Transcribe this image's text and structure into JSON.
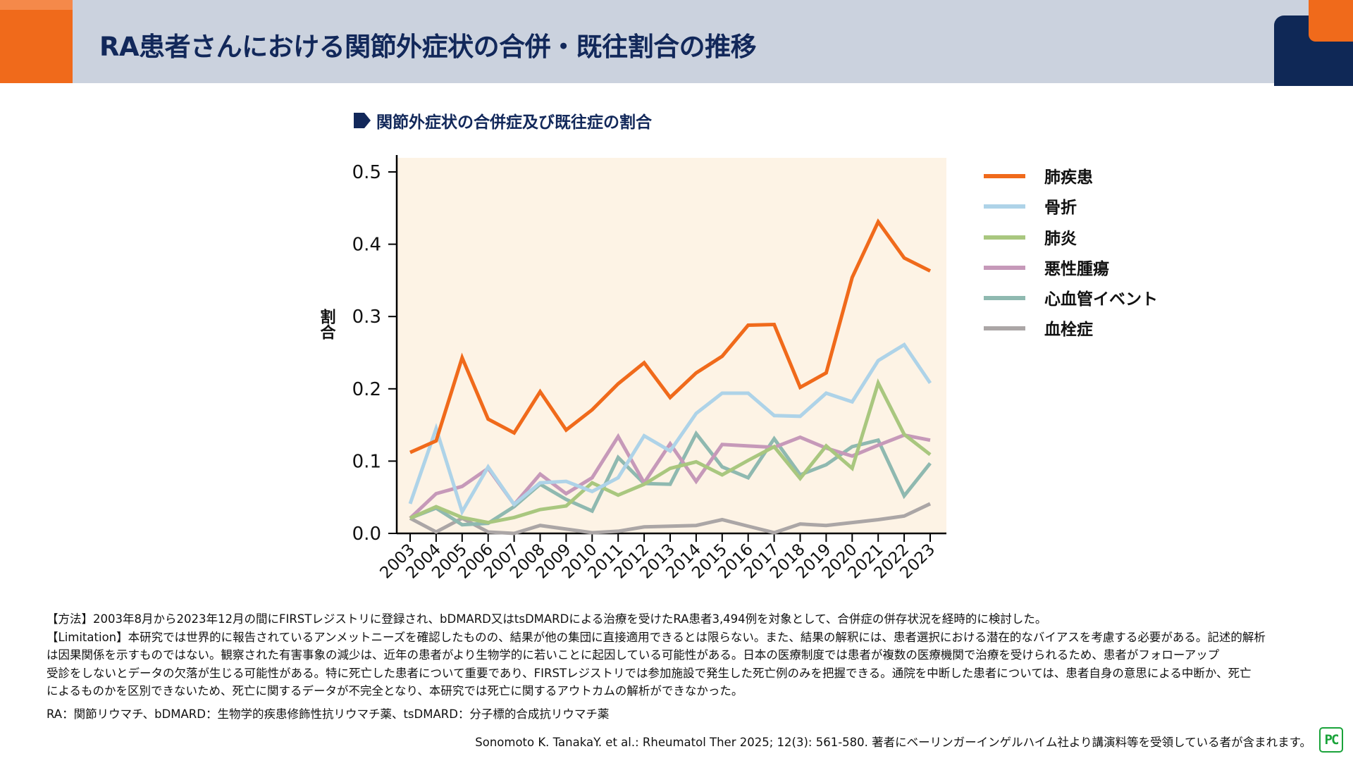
{
  "header": {
    "title": "RA患者さんにおける関節外症状の合併・既往割合の推移"
  },
  "colors": {
    "header_bg": "#cbd2de",
    "accent_orange": "#f06a1b",
    "navy": "#12285a",
    "plot_bg": "#fdf3e5"
  },
  "chart_data": {
    "type": "line",
    "title": "関節外症状の合併症及び既往症の割合",
    "xlabel": "",
    "ylabel": "割合",
    "x": [
      "2003",
      "2004",
      "2005",
      "2006",
      "2007",
      "2008",
      "2009",
      "2010",
      "2011",
      "2012",
      "2013",
      "2014",
      "2015",
      "2016",
      "2017",
      "2018",
      "2019",
      "2020",
      "2021",
      "2022",
      "2023"
    ],
    "ylim": [
      0,
      0.52
    ],
    "yticks": [
      "0.0",
      "0.1",
      "0.2",
      "0.3",
      "0.4",
      "0.5"
    ],
    "grid": false,
    "legend_position": "right",
    "series": [
      {
        "name": "肺疾患",
        "color": "#f06a1b",
        "values": [
          0.112,
          0.128,
          0.243,
          0.158,
          0.139,
          0.196,
          0.143,
          0.171,
          0.207,
          0.236,
          0.188,
          0.222,
          0.245,
          0.288,
          0.289,
          0.202,
          0.222,
          0.354,
          0.431,
          0.381,
          0.363
        ]
      },
      {
        "name": "骨折",
        "color": "#aed3e8",
        "values": [
          0.041,
          0.145,
          0.03,
          0.092,
          0.04,
          0.07,
          0.072,
          0.058,
          0.077,
          0.135,
          0.114,
          0.166,
          0.194,
          0.194,
          0.163,
          0.162,
          0.194,
          0.182,
          0.239,
          0.261,
          0.208
        ]
      },
      {
        "name": "肺炎",
        "color": "#a9c77f",
        "values": [
          0.021,
          0.037,
          0.022,
          0.015,
          0.022,
          0.033,
          0.038,
          0.07,
          0.053,
          0.068,
          0.09,
          0.099,
          0.081,
          0.101,
          0.12,
          0.076,
          0.121,
          0.09,
          0.208,
          0.137,
          0.109
        ]
      },
      {
        "name": "悪性腫瘍",
        "color": "#c699b9",
        "values": [
          0.021,
          0.055,
          0.065,
          0.09,
          0.04,
          0.082,
          0.055,
          0.077,
          0.134,
          0.07,
          0.124,
          0.072,
          0.123,
          0.121,
          0.119,
          0.133,
          0.118,
          0.107,
          0.122,
          0.136,
          0.129
        ]
      },
      {
        "name": "心血管イベント",
        "color": "#8fb9b0",
        "values": [
          0.021,
          0.035,
          0.012,
          0.014,
          0.037,
          0.068,
          0.047,
          0.031,
          0.105,
          0.069,
          0.068,
          0.138,
          0.092,
          0.077,
          0.131,
          0.081,
          0.095,
          0.12,
          0.129,
          0.052,
          0.097
        ]
      },
      {
        "name": "血栓症",
        "color": "#aba6a6",
        "values": [
          0.021,
          0.002,
          0.021,
          0.002,
          0.0,
          0.011,
          0.006,
          0.001,
          0.003,
          0.009,
          0.01,
          0.011,
          0.019,
          0.01,
          0.001,
          0.013,
          0.011,
          0.015,
          0.019,
          0.024,
          0.041
        ]
      }
    ]
  },
  "footer": {
    "method_lines": [
      "【方法】2003年8月から2023年12月の間にFIRSTレジストリに登録され、bDMARD又はtsDMARDによる治療を受けたRA患者3,494例を対象として、合併症の併存状況を経時的に検討した。",
      "【Limitation】本研究では世界的に報告されているアンメットニーズを確認したものの、結果が他の集団に直接適用できるとは限らない。また、結果の解釈には、患者選択における潜在的なバイアスを考慮する必要がある。記述的解析",
      "は因果関係を示すものではない。観察された有害事象の減少は、近年の患者がより生物学的に若いことに起因している可能性がある。日本の医療制度では患者が複数の医療機関で治療を受けられるため、患者がフォローアップ",
      "受診をしないとデータの欠落が生じる可能性がある。特に死亡した患者について重要であり、FIRSTレジストリでは参加施設で発生した死亡例のみを把握できる。通院を中断した患者については、患者自身の意思による中断か、死亡",
      "によるものかを区別できないため、死亡に関するデータが不完全となり、本研究では死亡に関するアウトカムの解析ができなかった。"
    ],
    "abbreviations": "RA：関節リウマチ、bDMARD：生物学的疾患修飾性抗リウマチ薬、tsDMARD：分子標的合成抗リウマチ薬",
    "citation": "Sonomoto K. TanakaY. et al.: Rheumatol Ther 2025; 12(3): 561-580. 著者にベーリンガーインゲルハイム社より講演料等を受領している者が含まれます。",
    "logo_text": "PC"
  }
}
